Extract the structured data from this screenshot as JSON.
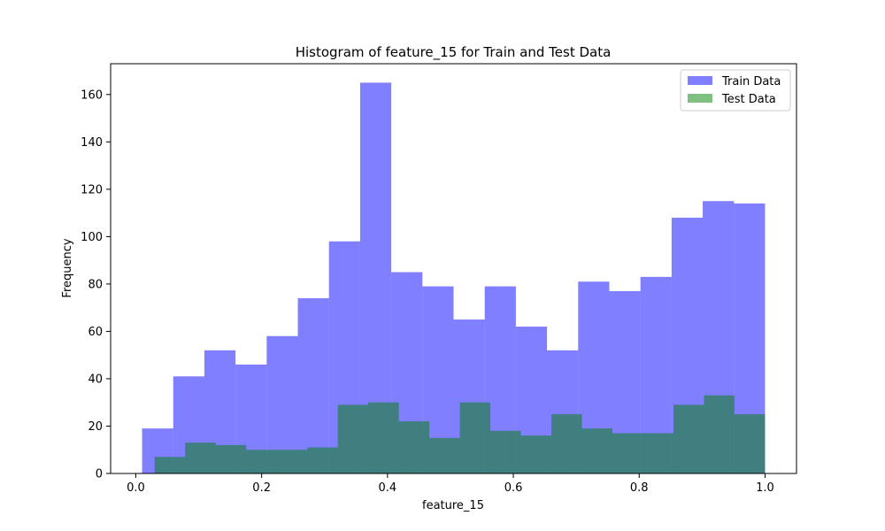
{
  "chart_data": {
    "type": "bar",
    "title": "Histogram of feature_15 for Train and Test Data",
    "xlabel": "feature_15",
    "ylabel": "Frequency",
    "xlim": [
      -0.04,
      1.05
    ],
    "ylim": [
      0,
      173
    ],
    "x_ticks": [
      0.0,
      0.2,
      0.4,
      0.6,
      0.8,
      1.0
    ],
    "x_tick_labels": [
      "0.0",
      "0.2",
      "0.4",
      "0.6",
      "0.8",
      "1.0"
    ],
    "y_ticks": [
      0,
      20,
      40,
      60,
      80,
      100,
      120,
      140,
      160
    ],
    "y_tick_labels": [
      "0",
      "20",
      "40",
      "60",
      "80",
      "100",
      "120",
      "140",
      "160"
    ],
    "legend_position": "top-right",
    "series": [
      {
        "name": "Train Data",
        "color": "#0000ff",
        "opacity": 0.5,
        "bin_edges": [
          0.01,
          0.0595,
          0.109,
          0.1585,
          0.208,
          0.2575,
          0.307,
          0.3565,
          0.406,
          0.4555,
          0.505,
          0.5545,
          0.604,
          0.6535,
          0.703,
          0.7525,
          0.802,
          0.8515,
          0.901,
          0.9505,
          1.0
        ],
        "values": [
          19,
          41,
          52,
          46,
          58,
          74,
          98,
          165,
          85,
          79,
          65,
          79,
          62,
          52,
          81,
          77,
          83,
          108,
          115,
          114
        ]
      },
      {
        "name": "Test Data",
        "color": "#008000",
        "opacity": 0.5,
        "bin_edges": [
          0.03,
          0.0785,
          0.127,
          0.1755,
          0.224,
          0.2725,
          0.321,
          0.3695,
          0.418,
          0.4665,
          0.515,
          0.5635,
          0.612,
          0.6605,
          0.709,
          0.7575,
          0.806,
          0.8545,
          0.903,
          0.9515,
          1.0
        ],
        "values": [
          7,
          13,
          12,
          10,
          10,
          11,
          29,
          30,
          22,
          15,
          30,
          18,
          16,
          25,
          19,
          17,
          17,
          29,
          33,
          25
        ]
      }
    ]
  }
}
